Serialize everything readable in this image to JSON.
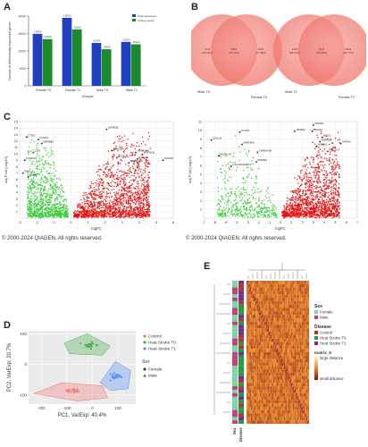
{
  "panels": {
    "a": "A",
    "b": "B",
    "c": "C",
    "d": "D",
    "e": "E"
  },
  "copyright": "© 2000-2024 QIAGEN. All rights reserved.",
  "chart_data": [
    {
      "id": "A",
      "type": "bar",
      "categories": [
        "Female T0",
        "Female T1",
        "Male T0",
        "Male T1"
      ],
      "series": [
        {
          "name": "Total expressed",
          "color": "#1f3fbf",
          "values": [
            14900,
            19500,
            12300,
            12600
          ]
        },
        {
          "name": "Unique genes",
          "color": "#1a8a2a",
          "values": [
            13400,
            16200,
            10500,
            11900
          ]
        }
      ],
      "ylim": [
        0,
        20000
      ],
      "xlabel": "Groups",
      "ylabel": "Number of differentially expressed genes"
    },
    {
      "id": "B",
      "type": "venn",
      "diagrams": [
        {
          "left_label": "Male T0",
          "right_label": "Female T0",
          "left_value": "1234\n(25.98%)",
          "center_value": "2804\n(43.46%)",
          "right_value": "1823\n(47.98%)"
        },
        {
          "left_label": "Male T1",
          "right_label": "Female T1",
          "left_value": "1469\n(25.62%)",
          "center_value": "3941\n(38.38%)",
          "right_value": "4929\n(49.77%)"
        }
      ]
    },
    {
      "id": "C-left",
      "type": "scatter",
      "xlabel": "logFC",
      "ylabel": "adj.P.Val [-log10]",
      "xlim": [
        -3,
        6
      ],
      "ylim": [
        0,
        15
      ],
      "xticks": [
        -3,
        -2,
        -1,
        0,
        1,
        2,
        3,
        4,
        5,
        6
      ],
      "yticks": [
        1,
        2,
        3,
        4,
        5,
        6,
        7,
        8,
        9,
        10,
        11,
        12,
        13,
        14,
        15
      ],
      "genes": [
        {
          "name": "CTSG",
          "x": -2.6,
          "y": 12.6
        },
        {
          "name": "CHI3L1",
          "x": -1.9,
          "y": 12.2
        },
        {
          "name": "DEFB4A",
          "x": -1.7,
          "y": 11.6
        },
        {
          "name": "CD8",
          "x": -2.2,
          "y": 10.2
        },
        {
          "name": "FCER1A",
          "x": -2.7,
          "y": 9.0
        },
        {
          "name": "PLK1",
          "x": -2.8,
          "y": 7.0
        },
        {
          "name": "CD38",
          "x": -2.5,
          "y": 6.4
        },
        {
          "name": "SAMD9L",
          "x": 2.1,
          "y": 13.8
        },
        {
          "name": "DNAJB4",
          "x": 2.4,
          "y": 10.5
        },
        {
          "name": "HSPA1A",
          "x": 3.8,
          "y": 10.2
        },
        {
          "name": "HSPA1B",
          "x": 4.2,
          "y": 9.9
        },
        {
          "name": "IL1RL1",
          "x": 2.7,
          "y": 9.4
        },
        {
          "name": "CXCL8",
          "x": 3.9,
          "y": 9.2
        },
        {
          "name": "HSPA6",
          "x": 5.4,
          "y": 9.0
        },
        {
          "name": "HSPD1B",
          "x": 3.4,
          "y": 8.6
        }
      ]
    },
    {
      "id": "C-right",
      "type": "scatter",
      "xlabel": "logFC",
      "ylabel": "adj.P.Val [-log10]",
      "xlim": [
        -7,
        7
      ],
      "ylim": [
        0,
        11
      ],
      "xticks": [
        -7,
        -6,
        -5,
        -4,
        -3,
        -2,
        -1,
        0,
        1,
        2,
        3,
        4,
        5,
        6,
        7
      ],
      "yticks": [
        1,
        2,
        3,
        4,
        5,
        6,
        7,
        8,
        9,
        10,
        11
      ],
      "genes": [
        {
          "name": "KYAT3",
          "x": -3.7,
          "y": 9.8
        },
        {
          "name": "CXCL8",
          "x": -6.3,
          "y": 8.9
        },
        {
          "name": "MIR7843",
          "x": -3.5,
          "y": 8.4
        },
        {
          "name": "CHRNA1B",
          "x": -2.1,
          "y": 7.5
        },
        {
          "name": "HSP1-16",
          "x": -5.6,
          "y": 7.1
        },
        {
          "name": "PRDM2",
          "x": -2.2,
          "y": 6.4
        },
        {
          "name": "LOC101928472",
          "x": -4.5,
          "y": 5.9
        },
        {
          "name": "SMAD1",
          "x": 3.0,
          "y": 10.6
        },
        {
          "name": "TRAM2",
          "x": 1.3,
          "y": 9.9
        },
        {
          "name": "CDC42",
          "x": 2.9,
          "y": 9.9
        },
        {
          "name": "BAG3",
          "x": 3.8,
          "y": 9.2
        },
        {
          "name": "HSPA1B",
          "x": 3.6,
          "y": 8.7
        },
        {
          "name": "HSPA6",
          "x": 5.5,
          "y": 8.5
        },
        {
          "name": "HSPH1",
          "x": 3.3,
          "y": 8.2
        },
        {
          "name": "PRLDC7",
          "x": 4.3,
          "y": 7.6
        }
      ]
    },
    {
      "id": "D",
      "type": "scatter",
      "xlabel": "PC1, VarExp: 40.4%",
      "ylabel": "PC2, VarExp: 20.7%",
      "xlim": [
        -250,
        170
      ],
      "ylim": [
        -130,
        110
      ],
      "xticks": [
        -200,
        -100,
        0,
        100
      ],
      "yticks": [
        -100,
        0,
        100
      ],
      "legend_title_1": "",
      "series": [
        {
          "name": "Control",
          "color": "#f27c7c"
        },
        {
          "name": "Heat Stroke T0",
          "color": "#4caf50"
        },
        {
          "name": "Heat Stroke T1",
          "color": "#5b8ff5"
        }
      ],
      "sex_legend_title": "Sex",
      "sex_levels": [
        "Female",
        "Male"
      ]
    },
    {
      "id": "E",
      "type": "heatmap",
      "legend_sex_title": "Sex",
      "legend_sex": [
        {
          "name": "Female",
          "color": "#7dd3a8"
        },
        {
          "name": "Male",
          "color": "#c2407a"
        }
      ],
      "legend_disease_title": "Disease",
      "legend_disease": [
        {
          "name": "Control",
          "color": "#b83232"
        },
        {
          "name": "Heat Stroke T0",
          "color": "#1e9e3c"
        },
        {
          "name": "Heat Stroke T1",
          "color": "#7b2c8a"
        }
      ],
      "scale_title": "matrix_6",
      "scale_high": "large distance",
      "scale_low": "small distance",
      "col_labels": [
        "Sex",
        "Disease"
      ]
    }
  ]
}
